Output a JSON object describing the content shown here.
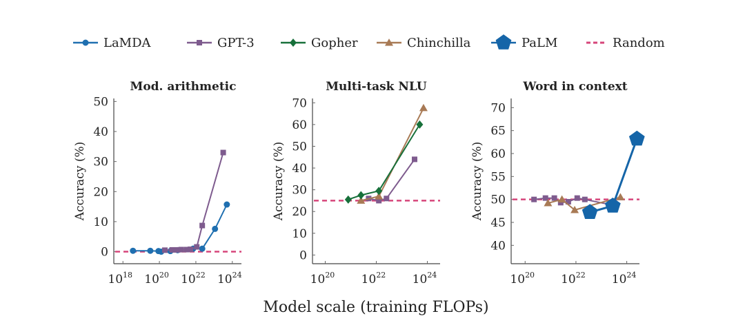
{
  "legend": [
    {
      "name": "LaMDA",
      "color": "#1f6fb0",
      "marker": "circle"
    },
    {
      "name": "GPT-3",
      "color": "#7e5b8e",
      "marker": "square"
    },
    {
      "name": "Gopher",
      "color": "#17703a",
      "marker": "diamond"
    },
    {
      "name": "Chinchilla",
      "color": "#a87a55",
      "marker": "triangle"
    },
    {
      "name": "PaLM",
      "color": "#1565a8",
      "marker": "pentagon"
    },
    {
      "name": "Random",
      "color": "#d6457a",
      "marker": "dashed"
    }
  ],
  "xlabel": "Model scale (training FLOPs)",
  "chart_data": [
    {
      "type": "line",
      "title": "Mod. arithmetic",
      "ylabel": "Accuracy (%)",
      "xscale": "log",
      "xlim_log10": [
        17.5,
        24.5
      ],
      "ylim": [
        -4,
        51
      ],
      "xticks": [
        18,
        20,
        22,
        24
      ],
      "yticks": [
        0,
        10,
        20,
        30,
        40,
        50
      ],
      "random": 0,
      "series": [
        {
          "name": "LaMDA",
          "log10_x": [
            18.55,
            19.5,
            19.95,
            20.1,
            20.6,
            21.0,
            21.85,
            22.35,
            23.05,
            23.7
          ],
          "y": [
            0.3,
            0.3,
            0.2,
            0,
            0.2,
            0.5,
            1,
            1,
            7.6,
            15.7
          ]
        },
        {
          "name": "GPT-3",
          "log10_x": [
            20.3,
            20.7,
            21.0,
            21.2,
            21.5,
            21.7,
            22.05,
            22.35,
            23.5
          ],
          "y": [
            0.5,
            0.6,
            0.6,
            0.7,
            0.7,
            0.8,
            1.6,
            8.7,
            33
          ]
        }
      ]
    },
    {
      "type": "line",
      "title": "Multi-task NLU",
      "ylabel": "Accuracy (%)",
      "xscale": "log",
      "xlim_log10": [
        19.5,
        24.5
      ],
      "ylim": [
        -4,
        72
      ],
      "xticks": [
        20,
        22,
        24
      ],
      "yticks": [
        0,
        10,
        20,
        30,
        40,
        50,
        60,
        70
      ],
      "random": 25,
      "series": [
        {
          "name": "GPT-3",
          "log10_x": [
            21.7,
            22.1,
            22.4,
            23.5
          ],
          "y": [
            26,
            25,
            26,
            44
          ]
        },
        {
          "name": "Chinchilla",
          "log10_x": [
            21.4,
            22.1,
            23.85
          ],
          "y": [
            25,
            27,
            67.6
          ]
        },
        {
          "name": "Gopher",
          "log10_x": [
            20.9,
            21.4,
            22.1,
            23.7
          ],
          "y": [
            25.5,
            27.5,
            29.5,
            60
          ]
        }
      ]
    },
    {
      "type": "line",
      "title": "Word in context",
      "ylabel": "Accuracy (%)",
      "xscale": "log",
      "xlim_log10": [
        19.45,
        24.5
      ],
      "ylim": [
        36,
        72
      ],
      "xticks": [
        20,
        22,
        24
      ],
      "yticks": [
        40,
        45,
        50,
        55,
        60,
        65,
        70
      ],
      "random": 50,
      "series": [
        {
          "name": "GPT-3",
          "log10_x": [
            20.35,
            20.8,
            21.15,
            21.4,
            21.7,
            22.05,
            22.35,
            23.5
          ],
          "y": [
            50,
            50.3,
            50.3,
            49.3,
            49.5,
            50.3,
            50,
            48.7
          ]
        },
        {
          "name": "Chinchilla",
          "log10_x": [
            20.9,
            21.45,
            21.95,
            23.75
          ],
          "y": [
            49.2,
            50,
            47.7,
            50.5
          ]
        },
        {
          "name": "PaLM",
          "log10_x": [
            22.55,
            23.45,
            24.4
          ],
          "y": [
            47.2,
            48.6,
            63.2
          ]
        }
      ]
    }
  ]
}
